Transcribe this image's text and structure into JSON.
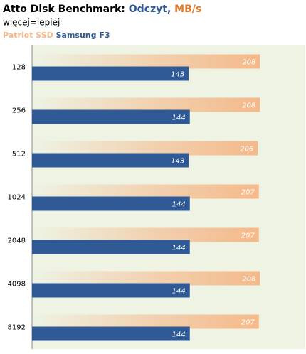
{
  "chart_data": {
    "type": "bar",
    "orientation": "horizontal",
    "title": "Atto Disk Benchmark:",
    "title_series": "Odczyt,",
    "title_unit": "MB/s",
    "subtitle": "więcej=lepiej",
    "categories": [
      "128",
      "256",
      "512",
      "1024",
      "2048",
      "4098",
      "8192"
    ],
    "series": [
      {
        "name": "Patriot SSD",
        "color": "#f4b98a",
        "values": [
          208,
          208,
          206,
          207,
          207,
          208,
          207
        ]
      },
      {
        "name": "Samsung F3",
        "color": "#2f5a96",
        "values": [
          143,
          144,
          143,
          144,
          144,
          144,
          144
        ]
      }
    ],
    "xlim": [
      0,
      250
    ]
  }
}
